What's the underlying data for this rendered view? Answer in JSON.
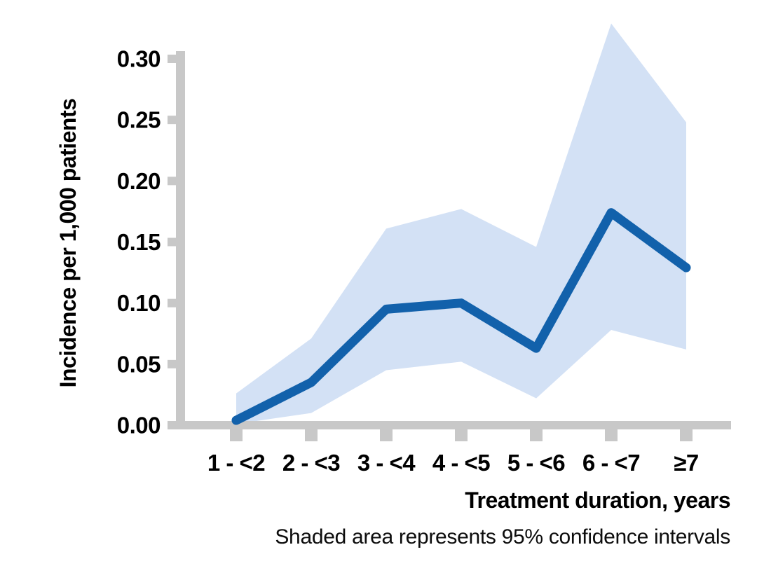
{
  "chart_data": {
    "type": "line",
    "categories": [
      "1 - <2",
      "2 - <3",
      "3 - <4",
      "4 - <5",
      "5 - <6",
      "6 - <7",
      "≥7"
    ],
    "series": [
      {
        "name": "Incidence per 1,000 patients",
        "values": [
          0.004,
          0.035,
          0.095,
          0.1,
          0.063,
          0.174,
          0.129
        ]
      }
    ],
    "confidence_band": {
      "name": "95% confidence intervals",
      "upper": [
        0.026,
        0.071,
        0.161,
        0.177,
        0.146,
        0.329,
        0.248
      ],
      "lower": [
        0.001,
        0.01,
        0.045,
        0.052,
        0.022,
        0.078,
        0.062
      ]
    },
    "title": "",
    "xlabel": "Treatment duration, years",
    "ylabel": "Incidence per 1,000 patients",
    "caption": "Shaded area represents 95% confidence intervals",
    "ylim": [
      0,
      0.3
    ],
    "ytick_step": 0.05,
    "ytick_labels": [
      "0.00",
      "0.05",
      "0.10",
      "0.15",
      "0.20",
      "0.25",
      "0.30"
    ],
    "grid": false,
    "legend_position": "none",
    "colors": {
      "line": "#1261ab",
      "band": "#d3e1f5",
      "axis": "#c8c8c8",
      "text": "#000000"
    }
  }
}
